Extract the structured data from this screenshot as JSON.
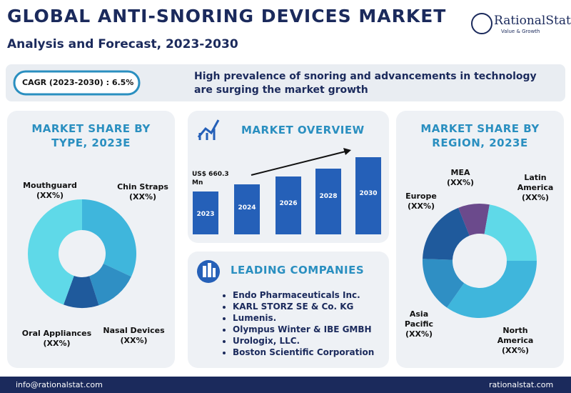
{
  "header": {
    "title": "GLOBAL ANTI-SNORING DEVICES MARKET",
    "subtitle": "Analysis and Forecast, 2023-2030",
    "logo": "RationalStat",
    "tagline": "Value & Growth"
  },
  "banner": {
    "cagr": "CAGR (2023-2030) : 6.5%",
    "headline": "High prevalence of snoring and advancements in technology are surging the market growth"
  },
  "type_panel": {
    "title": "MARKET SHARE BY TYPE, 2023E",
    "segments": [
      {
        "name": "Mouthguard",
        "share": "(XX%)"
      },
      {
        "name": "Chin Straps",
        "share": "(XX%)"
      },
      {
        "name": "Nasal Devices",
        "share": "(XX%)"
      },
      {
        "name": "Oral Appliances",
        "share": "(XX%)"
      }
    ]
  },
  "overview_panel": {
    "title": "MARKET OVERVIEW",
    "value_label": "US$ 660.3 Mn",
    "years": [
      "2023",
      "2024",
      "2026",
      "2028",
      "2030"
    ]
  },
  "companies_panel": {
    "title": "LEADING COMPANIES",
    "items": [
      "Endo Pharmaceuticals Inc.",
      "KARL STORZ SE & Co. KG",
      "Lumenis.",
      "Olympus Winter & IBE GMBH",
      "Urologix, LLC.",
      "Boston Scientific Corporation"
    ]
  },
  "region_panel": {
    "title": "MARKET SHARE BY REGION, 2023E",
    "segments": [
      {
        "name": "MEA",
        "share": "(XX%)"
      },
      {
        "name": "Latin America",
        "share": "(XX%)"
      },
      {
        "name": "North America",
        "share": "(XX%)"
      },
      {
        "name": "Asia Pacific",
        "share": "(XX%)"
      },
      {
        "name": "Europe",
        "share": "(XX%)"
      }
    ]
  },
  "footer": {
    "email": "info@rationalstat.com",
    "website": "rationalstat.com"
  }
}
